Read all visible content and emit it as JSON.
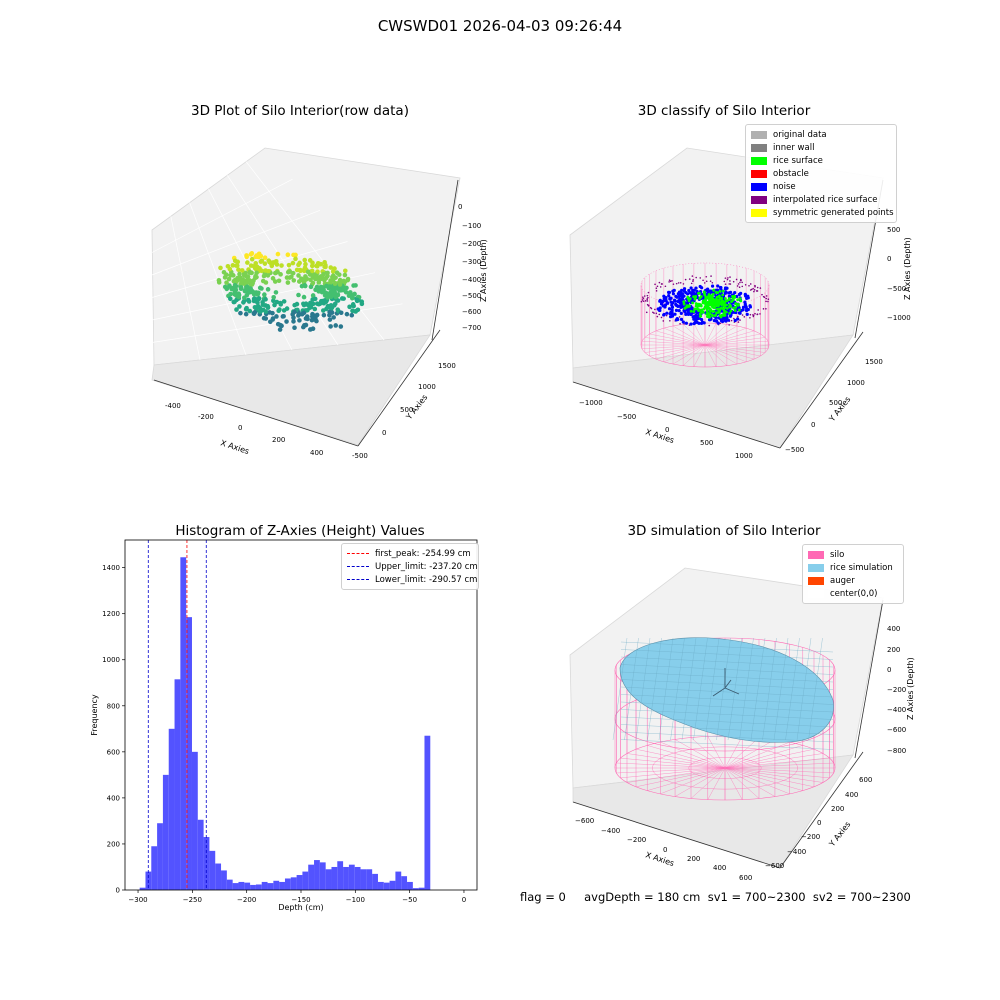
{
  "suptitle": "CWSWD01 2026-04-03 09:26:44",
  "footer": "flag = 0     avgDepth = 180 cm  sv1 = 700~2300  sv2 = 700~2300",
  "colors": {
    "hist_bar": "#4a4aff",
    "first_peak": "#ff0000",
    "limits": "#0000cc",
    "silo_wire": "#ff69b4",
    "rice_sim": "#87ceeb"
  },
  "chart_data": [
    {
      "type": "scatter",
      "projection": "3d",
      "title": "3D Plot of Silo Interior(row data)",
      "xlabel": "X Axies",
      "ylabel": "Y Axies",
      "zlabel": "Z Axies (Depth)",
      "xticks": [
        "-400",
        "-200",
        "0",
        "200",
        "400"
      ],
      "yticks": [
        "-500",
        "0",
        "500",
        "1000",
        "1500"
      ],
      "zticks": [
        "0",
        "−100",
        "−200",
        "−300",
        "−400",
        "−500",
        "−600",
        "−700"
      ],
      "colormap": "viridis"
    },
    {
      "type": "scatter",
      "projection": "3d",
      "title": "3D classify of Silo Interior",
      "xlabel": "X Axies",
      "ylabel": "Y Axies",
      "zlabel": "Z Axies (Depth)",
      "xticks": [
        "−1000",
        "−500",
        "0",
        "500",
        "1000"
      ],
      "yticks": [
        "−500",
        "0",
        "500",
        "1000",
        "1500"
      ],
      "zticks": [
        "500",
        "0",
        "−500",
        "−1000"
      ],
      "legend": [
        {
          "name": "original data",
          "color": "#b0b0b0"
        },
        {
          "name": "inner wall",
          "color": "#808080"
        },
        {
          "name": "rice surface",
          "color": "#00ff00"
        },
        {
          "name": "obstacle",
          "color": "#ff0000"
        },
        {
          "name": "noise",
          "color": "#0000ff"
        },
        {
          "name": "interpolated rice surface",
          "color": "#800080"
        },
        {
          "name": "symmetric generated points",
          "color": "#ffff00"
        }
      ]
    },
    {
      "type": "bar",
      "title": "Histogram of Z-Axies (Height) Values",
      "xlabel": "Depth (cm)",
      "ylabel": "Frequency",
      "xlim": [
        -312,
        12
      ],
      "ylim": [
        0,
        1520
      ],
      "xticks": [
        -300,
        -250,
        -200,
        -150,
        -100,
        -50,
        0
      ],
      "xtick_labels": [
        "−300",
        "−250",
        "−200",
        "−150",
        "−100",
        "−50",
        "0"
      ],
      "yticks": [
        0,
        200,
        400,
        600,
        800,
        1000,
        1200,
        1400
      ],
      "bin_start": -298.5,
      "bin_width": 5.35,
      "values": [
        10,
        80,
        190,
        290,
        500,
        700,
        915,
        1445,
        1185,
        600,
        305,
        230,
        170,
        115,
        85,
        45,
        30,
        35,
        32,
        22,
        24,
        35,
        30,
        40,
        35,
        50,
        55,
        65,
        80,
        110,
        130,
        120,
        90,
        100,
        125,
        100,
        110,
        100,
        90,
        90,
        70,
        35,
        32,
        40,
        80,
        60,
        35,
        8,
        10,
        670
      ],
      "lines": [
        {
          "label": "first_peak: -254.99 cm",
          "x": -254.99,
          "color": "#ff0000"
        },
        {
          "label": "Upper_limit: -237.20 cm",
          "x": -237.2,
          "color": "#0000cc"
        },
        {
          "label": "Lower_limit: -290.57 cm",
          "x": -290.57,
          "color": "#0000cc"
        }
      ],
      "legend_loc": "upper right"
    },
    {
      "type": "surface",
      "projection": "3d",
      "title": "3D simulation of Silo Interior",
      "xlabel": "X Axies",
      "ylabel": "Y Axies",
      "zlabel": "Z Axies (Depth)",
      "xticks": [
        "−600",
        "−400",
        "−200",
        "0",
        "200",
        "400",
        "600"
      ],
      "yticks": [
        "−600",
        "−400",
        "−200",
        "0",
        "200",
        "400",
        "600"
      ],
      "zticks": [
        "400",
        "200",
        "0",
        "−200",
        "−400",
        "−600",
        "−800"
      ],
      "legend": [
        {
          "name": "silo",
          "color": "#ff69b4"
        },
        {
          "name": "rice simulation",
          "color": "#87ceeb"
        },
        {
          "name": "auger",
          "color": "#ff4500"
        },
        {
          "name": "center(0,0)",
          "color": "#ffffff"
        }
      ]
    }
  ]
}
